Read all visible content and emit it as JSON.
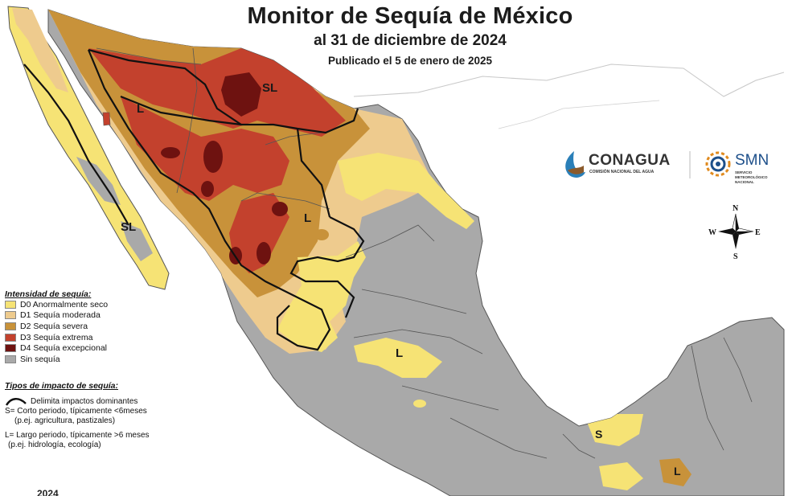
{
  "header": {
    "title": "Monitor de Sequía de México",
    "date_line": "al 31 de diciembre de 2024",
    "published": "Publicado el 5 de enero de 2025"
  },
  "map_labels": {
    "impact_labels": [
      "SL",
      "L",
      "SL",
      "L",
      "L",
      "S",
      "L"
    ]
  },
  "compass": {
    "n": "N",
    "s": "S",
    "e": "E",
    "w": "W"
  },
  "logos": {
    "conagua_name": "CONAGUA",
    "conagua_sub": "COMISIÓN NACIONAL DEL AGUA",
    "smn_name": "SMN",
    "smn_sub": "SERVICIO METEOROLÓGICO NACIONAL"
  },
  "legend": {
    "intensity_title": "Intensidad de sequía:",
    "items": [
      {
        "label": "D0 Anormalmente seco",
        "color": "#f6e375"
      },
      {
        "label": "D1 Sequía moderada",
        "color": "#eecb8e"
      },
      {
        "label": "D2 Sequía severa",
        "color": "#c8923a"
      },
      {
        "label": "D3 Sequía extrema",
        "color": "#c3412d"
      },
      {
        "label": "D4 Sequía excepcional",
        "color": "#6e1210"
      },
      {
        "label": "Sin sequía",
        "color": "#a9a9a9"
      }
    ],
    "impact_title": "Tipos de impacto de sequía:",
    "impact_line": "Delimita impactos dominantes",
    "short_term_1": "S= Corto periodo, típicamente <6meses",
    "short_term_2": "(p.ej. agricultura, pastizales)",
    "long_term_1": "L= Largo periodo, típicamente >6 meses",
    "long_term_2": "(p.ej. hidrología, ecología)"
  },
  "footer_partial": "2024"
}
